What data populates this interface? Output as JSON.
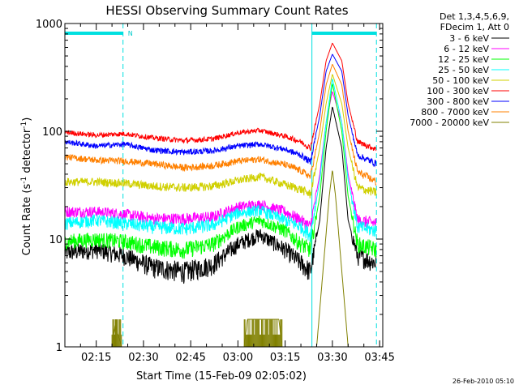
{
  "chart_data": {
    "type": "line",
    "title": "HESSI Observing Summary Count Rates",
    "xlabel": "Start Time (15-Feb-09 02:05:02)",
    "ylabel": "Count Rate (s^-1 detector^-1)",
    "ylabel_parts": [
      "Count Rate (s",
      "-1",
      " detector",
      "-1",
      ")"
    ],
    "yscale": "log",
    "ylim": [
      1,
      1000
    ],
    "y_ticks": [
      {
        "value": 1,
        "label": "1"
      },
      {
        "value": 10,
        "label": "10"
      },
      {
        "value": 100,
        "label": "100"
      },
      {
        "value": 1000,
        "label": "1000"
      }
    ],
    "xlim": [
      "02:05:02",
      "03:46:00"
    ],
    "x_ticks": [
      "02:15",
      "02:30",
      "02:45",
      "03:00",
      "03:15",
      "03:30",
      "03:45"
    ],
    "legend_title": [
      "Det 1,3,4,5,6,9,",
      "FDecim 1, Att 0"
    ],
    "legend_position": "right",
    "timestamp": "26-Feb-2010 05:10",
    "flag_label": "N",
    "night_intervals": [
      [
        "02:05:02",
        "02:23:30"
      ],
      [
        "03:23:30",
        "03:44:00"
      ]
    ],
    "annotations_dashed_x": [
      "02:23:30",
      "03:23:30",
      "03:44:00"
    ],
    "series": [
      {
        "name": "3 - 6 keV",
        "color": "#000000",
        "points": [
          [
            "02:05",
            7.5
          ],
          [
            "02:15",
            8
          ],
          [
            "02:24",
            7
          ],
          [
            "02:33",
            5.5
          ],
          [
            "02:43",
            5
          ],
          [
            "02:52",
            5.8
          ],
          [
            "03:00",
            9
          ],
          [
            "03:07",
            11
          ],
          [
            "03:15",
            8
          ],
          [
            "03:20",
            6
          ],
          [
            "03:23",
            5
          ],
          [
            "03:26",
            15
          ],
          [
            "03:28",
            70
          ],
          [
            "03:30",
            170
          ],
          [
            "03:33",
            70
          ],
          [
            "03:35",
            15
          ],
          [
            "03:38",
            7
          ],
          [
            "03:44",
            6
          ]
        ]
      },
      {
        "name": "6 - 12 keV",
        "color": "#ff00ff",
        "points": [
          [
            "02:05",
            18
          ],
          [
            "02:15",
            18
          ],
          [
            "02:24",
            17
          ],
          [
            "02:33",
            15.5
          ],
          [
            "02:43",
            15.5
          ],
          [
            "02:52",
            16
          ],
          [
            "03:00",
            20
          ],
          [
            "03:07",
            21
          ],
          [
            "03:15",
            18
          ],
          [
            "03:20",
            15
          ],
          [
            "03:23",
            13
          ],
          [
            "03:26",
            40
          ],
          [
            "03:28",
            120
          ],
          [
            "03:30",
            235
          ],
          [
            "03:33",
            120
          ],
          [
            "03:35",
            40
          ],
          [
            "03:38",
            15
          ],
          [
            "03:44",
            14
          ]
        ]
      },
      {
        "name": "12 - 25 keV",
        "color": "#00ff00",
        "points": [
          [
            "02:05",
            9.5
          ],
          [
            "02:15",
            10
          ],
          [
            "02:24",
            9.5
          ],
          [
            "02:33",
            8.5
          ],
          [
            "02:43",
            8
          ],
          [
            "02:52",
            9
          ],
          [
            "03:00",
            13
          ],
          [
            "03:07",
            15
          ],
          [
            "03:15",
            12
          ],
          [
            "03:20",
            9
          ],
          [
            "03:23",
            8
          ],
          [
            "03:26",
            25
          ],
          [
            "03:28",
            100
          ],
          [
            "03:30",
            280
          ],
          [
            "03:33",
            100
          ],
          [
            "03:35",
            25
          ],
          [
            "03:38",
            9
          ],
          [
            "03:44",
            8
          ]
        ]
      },
      {
        "name": "25 - 50 keV",
        "color": "#00ffff",
        "points": [
          [
            "02:05",
            14
          ],
          [
            "02:15",
            15
          ],
          [
            "02:24",
            14
          ],
          [
            "02:33",
            13
          ],
          [
            "02:43",
            12.5
          ],
          [
            "02:52",
            13.5
          ],
          [
            "03:00",
            17.5
          ],
          [
            "03:07",
            18.5
          ],
          [
            "03:15",
            15
          ],
          [
            "03:20",
            13
          ],
          [
            "03:23",
            11
          ],
          [
            "03:26",
            35
          ],
          [
            "03:28",
            120
          ],
          [
            "03:30",
            310
          ],
          [
            "03:33",
            120
          ],
          [
            "03:35",
            35
          ],
          [
            "03:38",
            13
          ],
          [
            "03:44",
            12
          ]
        ]
      },
      {
        "name": "50 - 100 keV",
        "color": "#d0d000",
        "points": [
          [
            "02:05",
            34
          ],
          [
            "02:15",
            34
          ],
          [
            "02:24",
            33
          ],
          [
            "02:33",
            31
          ],
          [
            "02:43",
            30
          ],
          [
            "02:52",
            31
          ],
          [
            "03:00",
            35
          ],
          [
            "03:07",
            38
          ],
          [
            "03:15",
            32
          ],
          [
            "03:20",
            29
          ],
          [
            "03:23",
            26
          ],
          [
            "03:26",
            70
          ],
          [
            "03:28",
            180
          ],
          [
            "03:30",
            340
          ],
          [
            "03:33",
            180
          ],
          [
            "03:35",
            70
          ],
          [
            "03:38",
            30
          ],
          [
            "03:44",
            27
          ]
        ]
      },
      {
        "name": "100 - 300 keV",
        "color": "#ff0000",
        "points": [
          [
            "02:05",
            98
          ],
          [
            "02:15",
            92
          ],
          [
            "02:24",
            95
          ],
          [
            "02:33",
            87
          ],
          [
            "02:43",
            82
          ],
          [
            "02:52",
            85
          ],
          [
            "03:00",
            97
          ],
          [
            "03:07",
            102
          ],
          [
            "03:15",
            90
          ],
          [
            "03:20",
            80
          ],
          [
            "03:23",
            70
          ],
          [
            "03:26",
            180
          ],
          [
            "03:28",
            450
          ],
          [
            "03:30",
            660
          ],
          [
            "03:33",
            450
          ],
          [
            "03:35",
            180
          ],
          [
            "03:38",
            80
          ],
          [
            "03:44",
            68
          ]
        ]
      },
      {
        "name": "300 - 800 keV",
        "color": "#0000ff",
        "points": [
          [
            "02:05",
            80
          ],
          [
            "02:15",
            73
          ],
          [
            "02:24",
            76
          ],
          [
            "02:33",
            67
          ],
          [
            "02:43",
            64
          ],
          [
            "02:52",
            66
          ],
          [
            "03:00",
            73
          ],
          [
            "03:07",
            76
          ],
          [
            "03:15",
            68
          ],
          [
            "03:20",
            60
          ],
          [
            "03:23",
            52
          ],
          [
            "03:26",
            140
          ],
          [
            "03:28",
            360
          ],
          [
            "03:30",
            520
          ],
          [
            "03:33",
            360
          ],
          [
            "03:35",
            140
          ],
          [
            "03:38",
            60
          ],
          [
            "03:44",
            50
          ]
        ]
      },
      {
        "name": "800 - 7000 keV",
        "color": "#ff8000",
        "points": [
          [
            "02:05",
            58
          ],
          [
            "02:15",
            54
          ],
          [
            "02:24",
            53
          ],
          [
            "02:33",
            50
          ],
          [
            "02:43",
            46
          ],
          [
            "02:52",
            48
          ],
          [
            "03:00",
            53
          ],
          [
            "03:07",
            55
          ],
          [
            "03:15",
            49
          ],
          [
            "03:20",
            43
          ],
          [
            "03:23",
            38
          ],
          [
            "03:26",
            100
          ],
          [
            "03:28",
            270
          ],
          [
            "03:30",
            420
          ],
          [
            "03:33",
            270
          ],
          [
            "03:35",
            100
          ],
          [
            "03:38",
            42
          ],
          [
            "03:44",
            34
          ]
        ]
      },
      {
        "name": "7000 - 20000 keV",
        "color": "#808000",
        "points": [
          [
            "02:05",
            1
          ],
          [
            "02:20",
            1
          ],
          [
            "02:21",
            1.6
          ],
          [
            "02:23",
            1
          ],
          [
            "03:02",
            1
          ],
          [
            "03:03",
            1.8
          ],
          [
            "03:13",
            1.8
          ],
          [
            "03:14",
            1
          ],
          [
            "03:25",
            1
          ],
          [
            "03:27",
            5
          ],
          [
            "03:29",
            25
          ],
          [
            "03:30",
            44
          ],
          [
            "03:31",
            25
          ],
          [
            "03:33",
            5
          ],
          [
            "03:35",
            1
          ],
          [
            "03:44",
            1
          ]
        ]
      }
    ]
  }
}
